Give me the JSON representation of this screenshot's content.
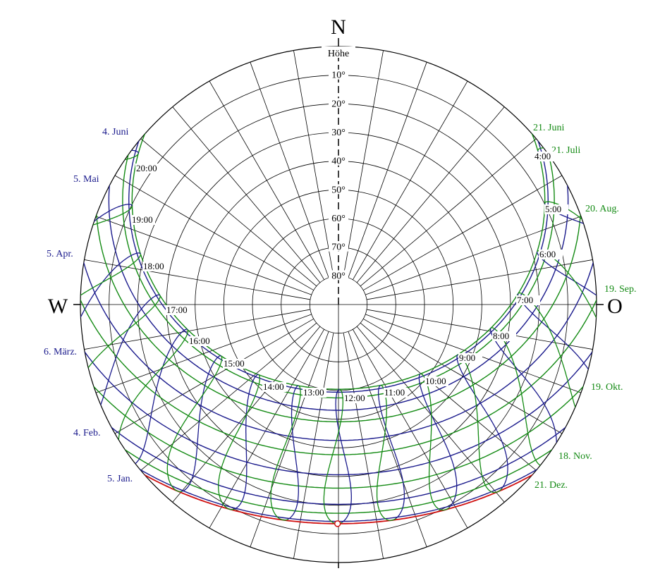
{
  "compass": {
    "north": "N",
    "west": "W",
    "east": "O"
  },
  "altitude": {
    "label": "Höhe",
    "ticks": [
      "10°",
      "20°",
      "30°",
      "40°",
      "50°",
      "60°",
      "70°",
      "80°"
    ]
  },
  "dates": {
    "left": [
      "4. Juni",
      "5. Mai",
      "5. Apr.",
      "6. März.",
      "4. Feb.",
      "5. Jan."
    ],
    "right": [
      "21. Juni",
      "21. Juli",
      "20. Aug.",
      "19. Sep.",
      "19. Okt.",
      "18. Nov.",
      "21. Dez."
    ]
  },
  "hours": [
    "4:00",
    "5:00",
    "6:00",
    "7:00",
    "8:00",
    "9:00",
    "10:00",
    "11:00",
    "12:00",
    "13:00",
    "14:00",
    "15:00",
    "16:00",
    "17:00",
    "18:00",
    "19:00",
    "20:00"
  ]
}
